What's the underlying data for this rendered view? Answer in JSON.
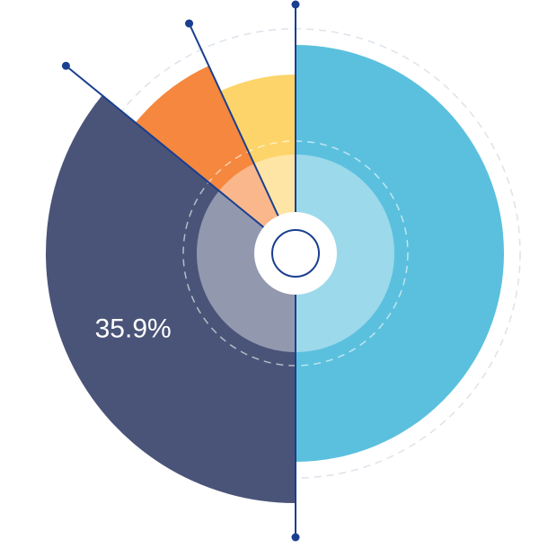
{
  "chart_data": {
    "type": "pie",
    "values": [
      50,
      35.9,
      7.2,
      6.9
    ],
    "value_labels": [
      null,
      "35.9%",
      null,
      null
    ],
    "colors": [
      "#5bc0de",
      "#4a5478",
      "#f5873e",
      "#fdd469"
    ]
  }
}
